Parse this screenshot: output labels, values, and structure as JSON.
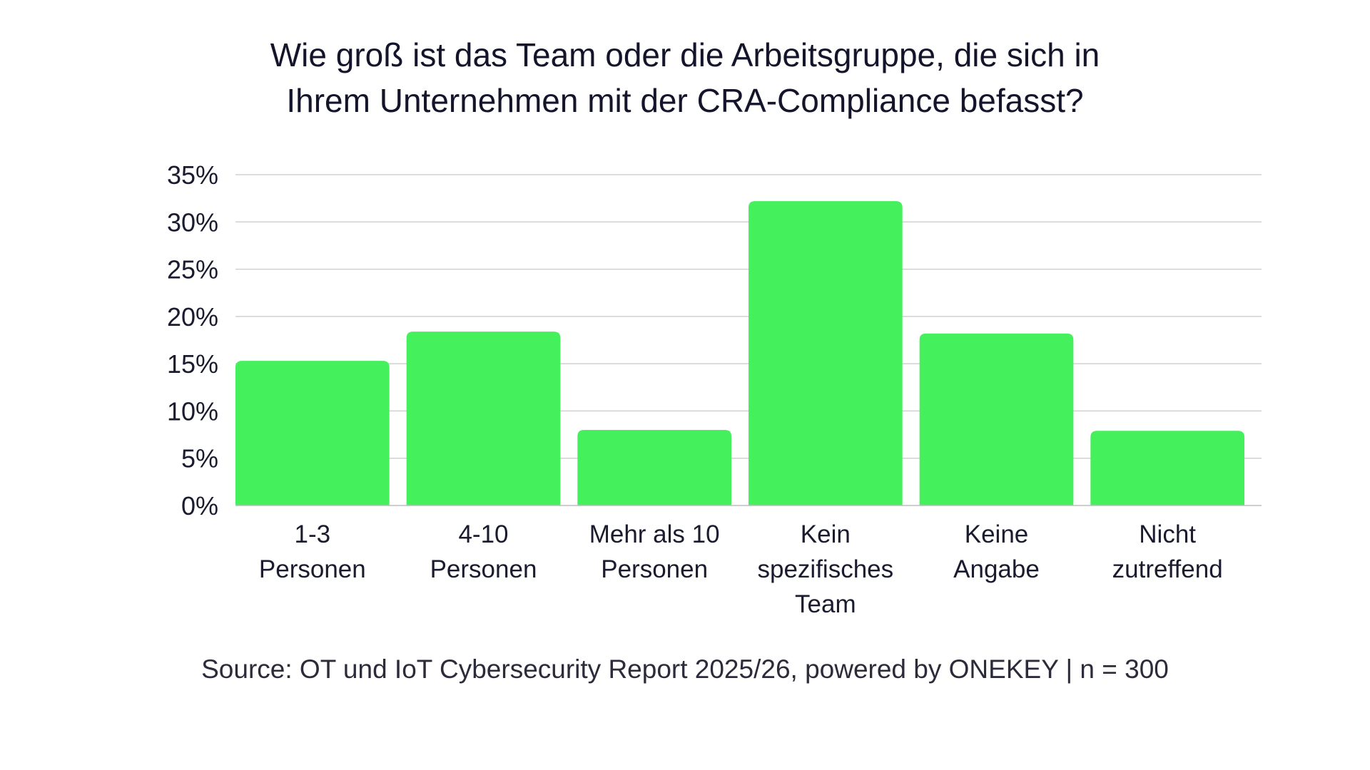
{
  "chart_data": {
    "type": "bar",
    "title_lines": [
      "Wie groß ist das Team oder die Arbeitsgruppe, die sich in",
      "Ihrem Unternehmen mit der CRA-Compliance befasst?"
    ],
    "categories": [
      [
        "1-3",
        "Personen"
      ],
      [
        "4-10",
        "Personen"
      ],
      [
        "Mehr als 10",
        "Personen"
      ],
      [
        "Kein",
        "spezifisches",
        "Team"
      ],
      [
        "Keine",
        "Angabe"
      ],
      [
        "Nicht",
        "zutreffend"
      ]
    ],
    "values": [
      15.3,
      18.4,
      8.0,
      32.2,
      18.2,
      7.9
    ],
    "y_ticks": [
      "0%",
      "5%",
      "10%",
      "15%",
      "20%",
      "25%",
      "30%",
      "35%"
    ],
    "ylim": [
      0,
      35
    ],
    "grid": true,
    "legend": "none",
    "bar_color": "#44f05c",
    "gridline_color": "#d0d0d0"
  },
  "source": "Source: OT und IoT Cybersecurity Report 2025/26, powered by ONEKEY | n = 300"
}
